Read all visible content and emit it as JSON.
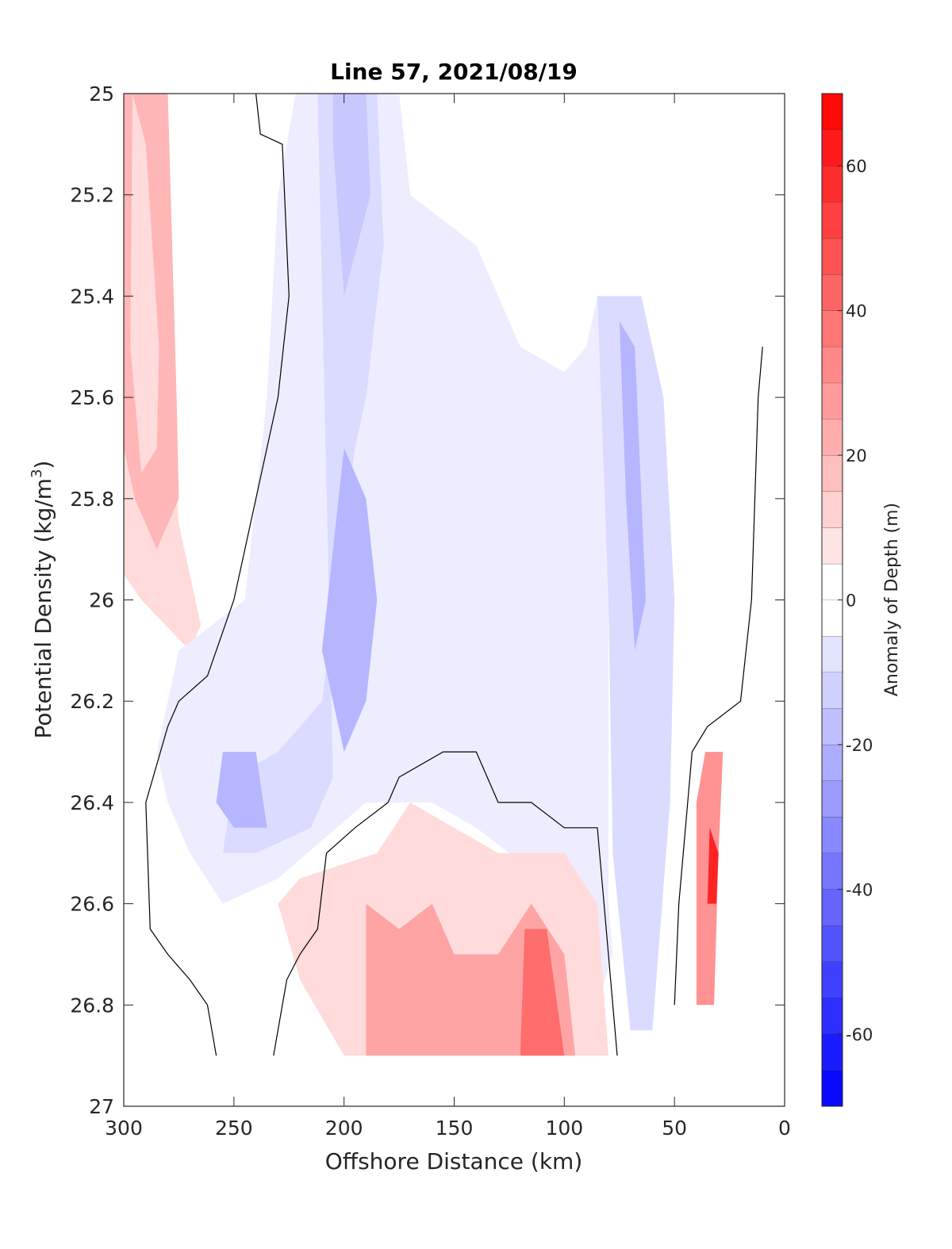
{
  "chart_data": {
    "type": "contour",
    "title": "Line 57, 2021/08/19",
    "xlabel": "Offshore Distance (km)",
    "ylabel_prefix": "Potential Density (kg/m",
    "ylabel_sup": "3",
    "ylabel_suffix": ")",
    "xlim": [
      300,
      0
    ],
    "ylim": [
      25,
      27
    ],
    "x_reversed": true,
    "y_reversed": true,
    "x_ticks": [
      300,
      250,
      200,
      150,
      100,
      50,
      0
    ],
    "x_tick_labels": [
      "300",
      "250",
      "200",
      "150",
      "100",
      "50",
      "0"
    ],
    "y_ticks": [
      25,
      25.2,
      25.4,
      25.6,
      25.8,
      26,
      26.2,
      26.4,
      26.6,
      26.8,
      27
    ],
    "y_tick_labels": [
      "25",
      "25.2",
      "25.4",
      "25.6",
      "25.8",
      "26",
      "26.2",
      "26.4",
      "26.6",
      "26.8",
      "27"
    ],
    "colorbar": {
      "label": "Anomaly of Depth (m)",
      "range": [
        -70,
        70
      ],
      "step": 5,
      "ticks": [
        -60,
        -40,
        -20,
        0,
        20,
        40,
        60
      ],
      "tick_labels": [
        "-60",
        "-40",
        "-20",
        "0",
        "20",
        "40",
        "60"
      ]
    },
    "data_extent": {
      "x_min": 0,
      "x_max": 300,
      "y_min": 25,
      "y_max": 26.9
    },
    "regions": [
      {
        "name": "positive anomaly offshore west band",
        "level": 10,
        "points": [
          [
            300,
            25
          ],
          [
            285,
            25
          ],
          [
            282,
            25.4
          ],
          [
            275,
            25.85
          ],
          [
            265,
            26.05
          ],
          [
            270,
            26.1
          ],
          [
            292,
            26.0
          ],
          [
            300,
            25.95
          ]
        ]
      },
      {
        "name": "positive anomaly offshore core",
        "level": 20,
        "points": [
          [
            300,
            25
          ],
          [
            280,
            25
          ],
          [
            276,
            25.6
          ],
          [
            275,
            25.8
          ],
          [
            285,
            25.9
          ],
          [
            295,
            25.8
          ],
          [
            300,
            25.7
          ]
        ]
      },
      {
        "name": "positive anomaly offshore center",
        "level": 10,
        "points": [
          [
            296,
            25
          ],
          [
            290,
            25.1
          ],
          [
            284,
            25.5
          ],
          [
            285,
            25.7
          ],
          [
            292,
            25.75
          ],
          [
            297,
            25.5
          ]
        ]
      },
      {
        "name": "negative anomaly main band",
        "level": -5,
        "points": [
          [
            222,
            25
          ],
          [
            175,
            25
          ],
          [
            170,
            25.2
          ],
          [
            140,
            25.3
          ],
          [
            120,
            25.5
          ],
          [
            100,
            25.55
          ],
          [
            90,
            25.5
          ],
          [
            85,
            25.4
          ],
          [
            80,
            25.5
          ],
          [
            80,
            26.6
          ],
          [
            78,
            26.7
          ],
          [
            85,
            26.8
          ],
          [
            100,
            26.6
          ],
          [
            125,
            26.5
          ],
          [
            140,
            26.45
          ],
          [
            160,
            26.4
          ],
          [
            190,
            26.4
          ],
          [
            230,
            26.55
          ],
          [
            255,
            26.6
          ],
          [
            270,
            26.5
          ],
          [
            280,
            26.4
          ],
          [
            285,
            26.3
          ],
          [
            275,
            26.1
          ],
          [
            245,
            26.0
          ],
          [
            235,
            25.6
          ],
          [
            230,
            25.2
          ]
        ]
      },
      {
        "name": "negative anomaly inner",
        "level": -10,
        "points": [
          [
            212,
            25
          ],
          [
            185,
            25
          ],
          [
            182,
            25.3
          ],
          [
            190,
            25.6
          ],
          [
            195,
            25.7
          ],
          [
            210,
            26.2
          ],
          [
            230,
            26.3
          ],
          [
            250,
            26.35
          ],
          [
            255,
            26.5
          ],
          [
            240,
            26.5
          ],
          [
            215,
            26.45
          ],
          [
            205,
            26.35
          ]
        ]
      },
      {
        "name": "negative anomaly core 1",
        "level": -15,
        "points": [
          [
            205,
            25
          ],
          [
            190,
            25
          ],
          [
            188,
            25.2
          ],
          [
            200,
            25.4
          ],
          [
            205,
            25.1
          ]
        ]
      },
      {
        "name": "negative anomaly core 2",
        "level": -20,
        "points": [
          [
            200,
            25.7
          ],
          [
            190,
            25.8
          ],
          [
            185,
            26
          ],
          [
            190,
            26.2
          ],
          [
            200,
            26.3
          ],
          [
            210,
            26.1
          ]
        ]
      },
      {
        "name": "negative anomaly core 3",
        "level": -20,
        "points": [
          [
            255,
            26.3
          ],
          [
            240,
            26.3
          ],
          [
            235,
            26.45
          ],
          [
            250,
            26.45
          ],
          [
            258,
            26.4
          ]
        ]
      },
      {
        "name": "negative anomaly nearshore band",
        "level": -10,
        "points": [
          [
            85,
            25.4
          ],
          [
            65,
            25.4
          ],
          [
            55,
            25.6
          ],
          [
            50,
            26.0
          ],
          [
            52,
            26.4
          ],
          [
            60,
            26.85
          ],
          [
            70,
            26.85
          ],
          [
            78,
            26.5
          ],
          [
            80,
            26.0
          ]
        ]
      },
      {
        "name": "negative anomaly nearshore core",
        "level": -20,
        "points": [
          [
            75,
            25.45
          ],
          [
            68,
            25.5
          ],
          [
            63,
            26.0
          ],
          [
            68,
            26.1
          ],
          [
            72,
            25.8
          ]
        ]
      },
      {
        "name": "positive anomaly deep center",
        "level": 10,
        "points": [
          [
            230,
            26.6
          ],
          [
            220,
            26.55
          ],
          [
            185,
            26.5
          ],
          [
            170,
            26.4
          ],
          [
            150,
            26.45
          ],
          [
            130,
            26.5
          ],
          [
            100,
            26.5
          ],
          [
            85,
            26.6
          ],
          [
            80,
            26.9
          ],
          [
            200,
            26.9
          ],
          [
            220,
            26.75
          ]
        ]
      },
      {
        "name": "positive anomaly deep center core",
        "level": 25,
        "points": [
          [
            190,
            26.6
          ],
          [
            175,
            26.65
          ],
          [
            160,
            26.6
          ],
          [
            150,
            26.7
          ],
          [
            130,
            26.7
          ],
          [
            115,
            26.6
          ],
          [
            100,
            26.7
          ],
          [
            95,
            26.9
          ],
          [
            190,
            26.9
          ]
        ]
      },
      {
        "name": "positive anomaly deep center max",
        "level": 40,
        "points": [
          [
            118,
            26.65
          ],
          [
            108,
            26.65
          ],
          [
            100,
            26.9
          ],
          [
            120,
            26.9
          ]
        ]
      },
      {
        "name": "positive anomaly nearshore strip",
        "level": 30,
        "points": [
          [
            36,
            26.3
          ],
          [
            28,
            26.3
          ],
          [
            30,
            26.5
          ],
          [
            32,
            26.8
          ],
          [
            40,
            26.8
          ],
          [
            40,
            26.4
          ]
        ]
      },
      {
        "name": "positive anomaly nearshore max",
        "level": 60,
        "points": [
          [
            34,
            26.45
          ],
          [
            30,
            26.5
          ],
          [
            31,
            26.6
          ],
          [
            35,
            26.6
          ]
        ]
      }
    ],
    "zero_contours": [
      {
        "name": "zero contour west",
        "points": [
          [
            240,
            25
          ],
          [
            238,
            25.08
          ],
          [
            228,
            25.1
          ],
          [
            225,
            25.4
          ],
          [
            230,
            25.6
          ],
          [
            240,
            25.8
          ],
          [
            250,
            26.0
          ],
          [
            262,
            26.15
          ],
          [
            275,
            26.2
          ],
          [
            280,
            26.25
          ],
          [
            290,
            26.4
          ],
          [
            288,
            26.65
          ],
          [
            280,
            26.7
          ],
          [
            270,
            26.75
          ],
          [
            262,
            26.8
          ],
          [
            258,
            26.9
          ]
        ]
      },
      {
        "name": "zero contour deep",
        "points": [
          [
            232,
            26.9
          ],
          [
            226,
            26.75
          ],
          [
            220,
            26.7
          ],
          [
            212,
            26.65
          ],
          [
            208,
            26.5
          ],
          [
            195,
            26.45
          ],
          [
            180,
            26.4
          ],
          [
            175,
            26.35
          ],
          [
            155,
            26.3
          ],
          [
            150,
            26.3
          ],
          [
            140,
            26.3
          ],
          [
            130,
            26.4
          ],
          [
            115,
            26.4
          ],
          [
            100,
            26.45
          ],
          [
            85,
            26.45
          ],
          [
            80,
            26.7
          ],
          [
            76,
            26.9
          ]
        ]
      },
      {
        "name": "zero contour nearshore",
        "points": [
          [
            50,
            26.8
          ],
          [
            48,
            26.6
          ],
          [
            42,
            26.3
          ],
          [
            35,
            26.25
          ],
          [
            20,
            26.2
          ],
          [
            15,
            26.0
          ],
          [
            12,
            25.6
          ],
          [
            10,
            25.5
          ]
        ]
      }
    ]
  }
}
